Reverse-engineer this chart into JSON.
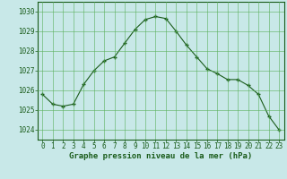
{
  "x": [
    0,
    1,
    2,
    3,
    4,
    5,
    6,
    7,
    8,
    9,
    10,
    11,
    12,
    13,
    14,
    15,
    16,
    17,
    18,
    19,
    20,
    21,
    22,
    23
  ],
  "y": [
    1025.8,
    1025.3,
    1025.2,
    1025.3,
    1026.3,
    1027.0,
    1027.5,
    1027.7,
    1028.4,
    1029.1,
    1029.6,
    1029.75,
    1029.65,
    1029.0,
    1028.3,
    1027.7,
    1027.1,
    1026.85,
    1026.55,
    1026.55,
    1026.25,
    1025.8,
    1024.7,
    1024.0
  ],
  "line_color": "#1a5c1a",
  "marker": "+",
  "marker_size": 3.5,
  "marker_color": "#1a5c1a",
  "bg_color": "#c8e8e8",
  "grid_color": "#5ab05a",
  "axis_color": "#1a5c1a",
  "ylim": [
    1023.5,
    1030.5
  ],
  "xlim": [
    -0.5,
    23.5
  ],
  "yticks": [
    1024,
    1025,
    1026,
    1027,
    1028,
    1029,
    1030
  ],
  "xticks": [
    0,
    1,
    2,
    3,
    4,
    5,
    6,
    7,
    8,
    9,
    10,
    11,
    12,
    13,
    14,
    15,
    16,
    17,
    18,
    19,
    20,
    21,
    22,
    23
  ],
  "xlabel": "Graphe pression niveau de la mer (hPa)",
  "font_color": "#1a5c1a",
  "tick_fontsize": 5.5,
  "label_fontsize": 6.5
}
